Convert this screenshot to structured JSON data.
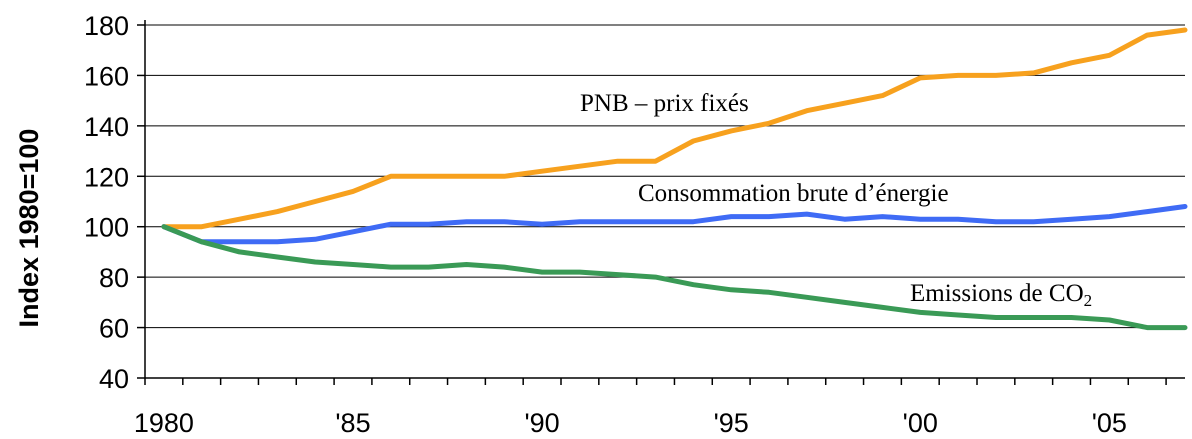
{
  "chart_data": {
    "type": "line",
    "xlabel": "",
    "ylabel": "Index 1980=100",
    "x": [
      1980,
      1981,
      1982,
      1983,
      1984,
      1985,
      1986,
      1987,
      1988,
      1989,
      1990,
      1991,
      1992,
      1993,
      1994,
      1995,
      1996,
      1997,
      1998,
      1999,
      2000,
      2001,
      2002,
      2003,
      2004,
      2005,
      2006,
      2007
    ],
    "x_tick_values": [
      1980,
      1985,
      1990,
      1995,
      2000,
      2005
    ],
    "x_tick_labels": [
      "1980",
      "'85",
      "'90",
      "'95",
      "'00",
      "'05"
    ],
    "ylim": [
      40,
      180
    ],
    "y_ticks": [
      40,
      60,
      80,
      100,
      120,
      140,
      160,
      180
    ],
    "grid": "horizontal",
    "series": [
      {
        "name": "PNB – prix fixés",
        "color": "#f7a11e",
        "values": [
          100,
          100,
          103,
          106,
          110,
          114,
          120,
          120,
          120,
          120,
          122,
          124,
          126,
          126,
          134,
          138,
          141,
          146,
          149,
          152,
          159,
          160,
          160,
          161,
          165,
          168,
          176,
          178
        ]
      },
      {
        "name": "Consommation brute d’énergie",
        "color": "#3f6bf5",
        "values": [
          100,
          94,
          94,
          94,
          95,
          98,
          101,
          101,
          102,
          102,
          101,
          102,
          102,
          102,
          102,
          104,
          104,
          105,
          103,
          104,
          103,
          103,
          102,
          102,
          103,
          104,
          106,
          108
        ]
      },
      {
        "name_main": "Emissions de CO",
        "name_sub": "2",
        "color": "#3a9a56",
        "values": [
          100,
          94,
          90,
          88,
          86,
          85,
          84,
          84,
          85,
          84,
          82,
          82,
          81,
          80,
          77,
          75,
          74,
          72,
          70,
          68,
          66,
          65,
          64,
          64,
          64,
          63,
          60,
          60
        ]
      }
    ]
  }
}
